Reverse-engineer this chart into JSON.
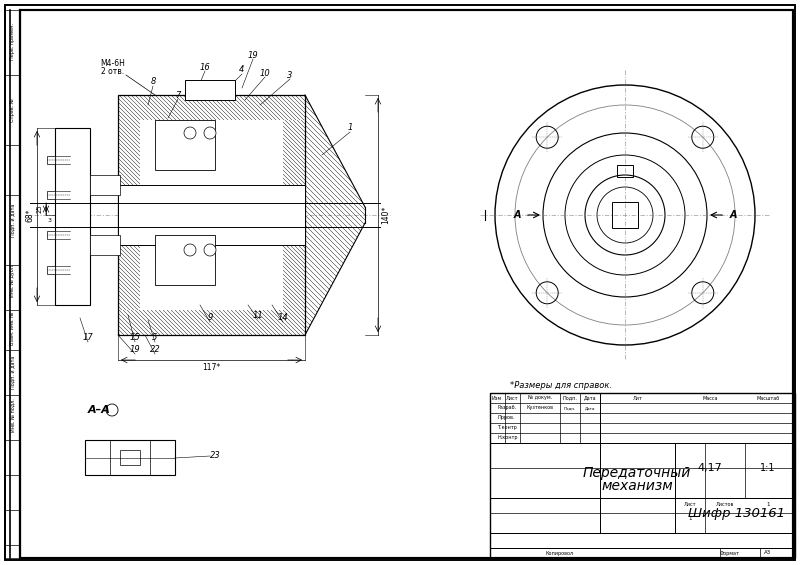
{
  "bg_color": "#ffffff",
  "title_line1": "Передаточный",
  "title_line2": "механизм",
  "shifr": "Шифр 130161",
  "massa": "4,17",
  "masshtab": "1:1",
  "list_val": "1",
  "listov_val": "1",
  "format_val": "А3",
  "note": "*Размеры для справок.",
  "name_razrab": "Кузтенков"
}
